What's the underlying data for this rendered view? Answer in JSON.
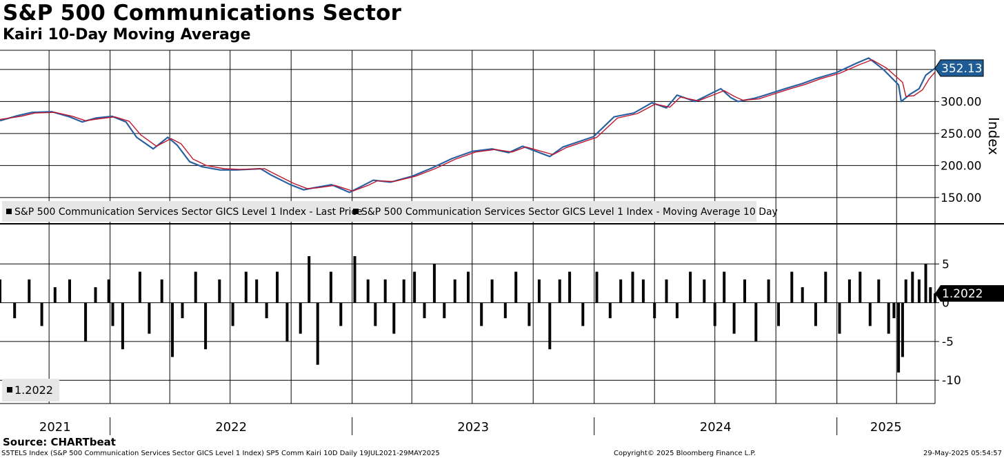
{
  "header": {
    "title": "S&P 500 Communications Sector",
    "subtitle": "Kairi 10-Day Moving Average"
  },
  "footer": {
    "source": "Source: CHARTbeat",
    "description": "S5TELS Index (S&P 500 Communication Services Sector GICS Level 1 Index) SP5 Comm Kairi 10D  Daily 19JUL2021-29MAY2025",
    "copyright": "Copyright© 2025 Bloomberg Finance L.P.",
    "timestamp": "29-May-2025 05:54:57"
  },
  "colors": {
    "price": "#2a5fa0",
    "ma": "#c0142c",
    "kairi": "#000000",
    "last_price_badge": "#1f5c96",
    "grid": "#000000"
  },
  "chart_data": [
    {
      "type": "line",
      "title": "",
      "ylabel": "Index",
      "ylim": [
        110,
        380
      ],
      "yticks": [
        150,
        200,
        250,
        300
      ],
      "ytick_labels": [
        "150.00",
        "200.00",
        "250.00",
        "300.00"
      ],
      "xlim": [
        "2021-07-19",
        "2025-05-29"
      ],
      "x_labels": [
        "2021",
        "2022",
        "2023",
        "2024",
        "2025"
      ],
      "last_value_label": "352.13",
      "series": [
        {
          "name": "S&P 500 Communication Services Sector GICS Level 1 Index - Last Price",
          "x": [
            "2021-07-19",
            "2021-08-15",
            "2021-09-05",
            "2021-10-05",
            "2021-11-01",
            "2021-11-20",
            "2021-12-10",
            "2022-01-04",
            "2022-01-25",
            "2022-02-10",
            "2022-03-07",
            "2022-03-29",
            "2022-04-12",
            "2022-05-01",
            "2022-05-20",
            "2022-06-16",
            "2022-07-10",
            "2022-08-16",
            "2022-09-01",
            "2022-09-30",
            "2022-10-20",
            "2022-11-03",
            "2022-12-01",
            "2022-12-28",
            "2023-01-20",
            "2023-02-02",
            "2023-02-28",
            "2023-04-01",
            "2023-05-01",
            "2023-06-01",
            "2023-07-01",
            "2023-07-31",
            "2023-08-25",
            "2023-09-15",
            "2023-10-26",
            "2023-11-15",
            "2023-12-31",
            "2024-01-31",
            "2024-03-01",
            "2024-03-28",
            "2024-04-19",
            "2024-05-05",
            "2024-06-01",
            "2024-07-10",
            "2024-07-25",
            "2024-08-05",
            "2024-08-30",
            "2024-09-15",
            "2024-10-15",
            "2024-11-10",
            "2024-12-01",
            "2024-12-31",
            "2025-01-31",
            "2025-02-18",
            "2025-03-12",
            "2025-04-04",
            "2025-04-08",
            "2025-04-21",
            "2025-05-05",
            "2025-05-15",
            "2025-05-29"
          ],
          "values": [
            270,
            278,
            283,
            284,
            276,
            268,
            274,
            277,
            268,
            244,
            226,
            244,
            232,
            206,
            198,
            193,
            193,
            195,
            185,
            170,
            162,
            165,
            170,
            158,
            170,
            177,
            174,
            183,
            196,
            211,
            222,
            226,
            220,
            230,
            214,
            229,
            245,
            276,
            282,
            298,
            290,
            310,
            300,
            320,
            306,
            300,
            305,
            310,
            320,
            328,
            336,
            345,
            360,
            368,
            350,
            326,
            300,
            311,
            320,
            341,
            352
          ]
        },
        {
          "name": "S&P 500 Communication Services Sector GICS Level 1 Index - Moving Average 10 Day",
          "x": [
            "2021-07-19",
            "2021-08-20",
            "2021-09-10",
            "2021-10-10",
            "2021-11-05",
            "2021-11-25",
            "2021-12-15",
            "2022-01-08",
            "2022-01-30",
            "2022-02-16",
            "2022-03-12",
            "2022-04-03",
            "2022-04-18",
            "2022-05-06",
            "2022-05-26",
            "2022-06-22",
            "2022-07-16",
            "2022-08-22",
            "2022-09-06",
            "2022-10-05",
            "2022-10-25",
            "2022-11-08",
            "2022-12-06",
            "2023-01-02",
            "2023-01-25",
            "2023-02-08",
            "2023-03-05",
            "2023-04-06",
            "2023-05-06",
            "2023-06-06",
            "2023-07-06",
            "2023-08-05",
            "2023-08-30",
            "2023-09-20",
            "2023-10-31",
            "2023-11-20",
            "2024-01-05",
            "2024-02-05",
            "2024-03-06",
            "2024-04-02",
            "2024-04-24",
            "2024-05-10",
            "2024-06-06",
            "2024-07-15",
            "2024-07-30",
            "2024-08-12",
            "2024-09-05",
            "2024-09-20",
            "2024-10-20",
            "2024-11-15",
            "2024-12-06",
            "2025-01-05",
            "2025-02-05",
            "2025-02-23",
            "2025-03-17",
            "2025-04-10",
            "2025-04-15",
            "2025-04-27",
            "2025-05-10",
            "2025-05-20",
            "2025-05-29"
          ],
          "values": [
            272,
            277,
            282,
            283,
            277,
            270,
            273,
            276,
            269,
            248,
            230,
            242,
            234,
            210,
            200,
            195,
            194,
            195,
            187,
            172,
            164,
            165,
            169,
            160,
            169,
            176,
            175,
            183,
            195,
            210,
            221,
            225,
            221,
            229,
            217,
            228,
            244,
            274,
            281,
            296,
            291,
            307,
            301,
            317,
            308,
            302,
            304,
            309,
            319,
            327,
            335,
            344,
            358,
            365,
            352,
            330,
            308,
            309,
            318,
            335,
            346
          ]
        }
      ]
    },
    {
      "type": "bar",
      "title": "",
      "ylabel": "",
      "ylim": [
        -13,
        10
      ],
      "yticks": [
        -10,
        -5,
        0,
        5
      ],
      "ytick_labels": [
        "-10",
        "-5",
        "0",
        "5"
      ],
      "last_value_label": "1.2022",
      "legend_label": "1.2022",
      "series": [
        {
          "name": "",
          "x": [
            "2021-07-19",
            "2021-08-10",
            "2021-09-01",
            "2021-09-20",
            "2021-10-10",
            "2021-11-01",
            "2021-11-25",
            "2021-12-10",
            "2021-12-30",
            "2022-01-05",
            "2022-01-20",
            "2022-02-15",
            "2022-03-01",
            "2022-03-20",
            "2022-04-05",
            "2022-04-20",
            "2022-05-10",
            "2022-05-25",
            "2022-06-15",
            "2022-07-05",
            "2022-07-25",
            "2022-08-10",
            "2022-08-25",
            "2022-09-10",
            "2022-09-25",
            "2022-10-15",
            "2022-10-28",
            "2022-11-10",
            "2022-11-30",
            "2022-12-15",
            "2023-01-05",
            "2023-01-25",
            "2023-02-05",
            "2023-02-20",
            "2023-03-05",
            "2023-03-20",
            "2023-04-05",
            "2023-04-20",
            "2023-05-05",
            "2023-05-20",
            "2023-06-05",
            "2023-06-25",
            "2023-07-15",
            "2023-07-31",
            "2023-08-20",
            "2023-09-05",
            "2023-09-25",
            "2023-10-10",
            "2023-10-26",
            "2023-11-10",
            "2023-11-25",
            "2023-12-15",
            "2024-01-05",
            "2024-01-25",
            "2024-02-10",
            "2024-02-28",
            "2024-03-15",
            "2024-04-01",
            "2024-04-19",
            "2024-05-05",
            "2024-05-25",
            "2024-06-15",
            "2024-07-01",
            "2024-07-15",
            "2024-07-30",
            "2024-08-15",
            "2024-09-01",
            "2024-09-20",
            "2024-10-05",
            "2024-10-25",
            "2024-11-10",
            "2024-11-30",
            "2024-12-15",
            "2025-01-05",
            "2025-01-20",
            "2025-02-05",
            "2025-02-20",
            "2025-03-05",
            "2025-03-20",
            "2025-03-28",
            "2025-04-04",
            "2025-04-10",
            "2025-04-15",
            "2025-04-25",
            "2025-05-05",
            "2025-05-15",
            "2025-05-22",
            "2025-05-29"
          ],
          "values": [
            3,
            -2,
            3,
            -3,
            2,
            3,
            -5,
            2,
            3,
            -3,
            -6,
            4,
            -4,
            3,
            -7,
            -2,
            4,
            -6,
            3,
            -3,
            4,
            3,
            -2,
            4,
            -5,
            -4,
            6,
            -8,
            4,
            -3,
            6,
            3,
            -3,
            3,
            -4,
            3,
            4,
            -2,
            5,
            -2,
            3,
            4,
            -3,
            3,
            -2,
            4,
            -3,
            3,
            -6,
            3,
            4,
            -3,
            4,
            -2,
            3,
            4,
            3,
            -2,
            3,
            -2,
            4,
            3,
            -3,
            4,
            -4,
            3,
            -5,
            3,
            -3,
            4,
            2,
            -3,
            4,
            -4,
            3,
            4,
            -3,
            3,
            -4,
            -2,
            -9,
            -7,
            3,
            4,
            3,
            5,
            2,
            1.2022
          ]
        }
      ]
    }
  ]
}
